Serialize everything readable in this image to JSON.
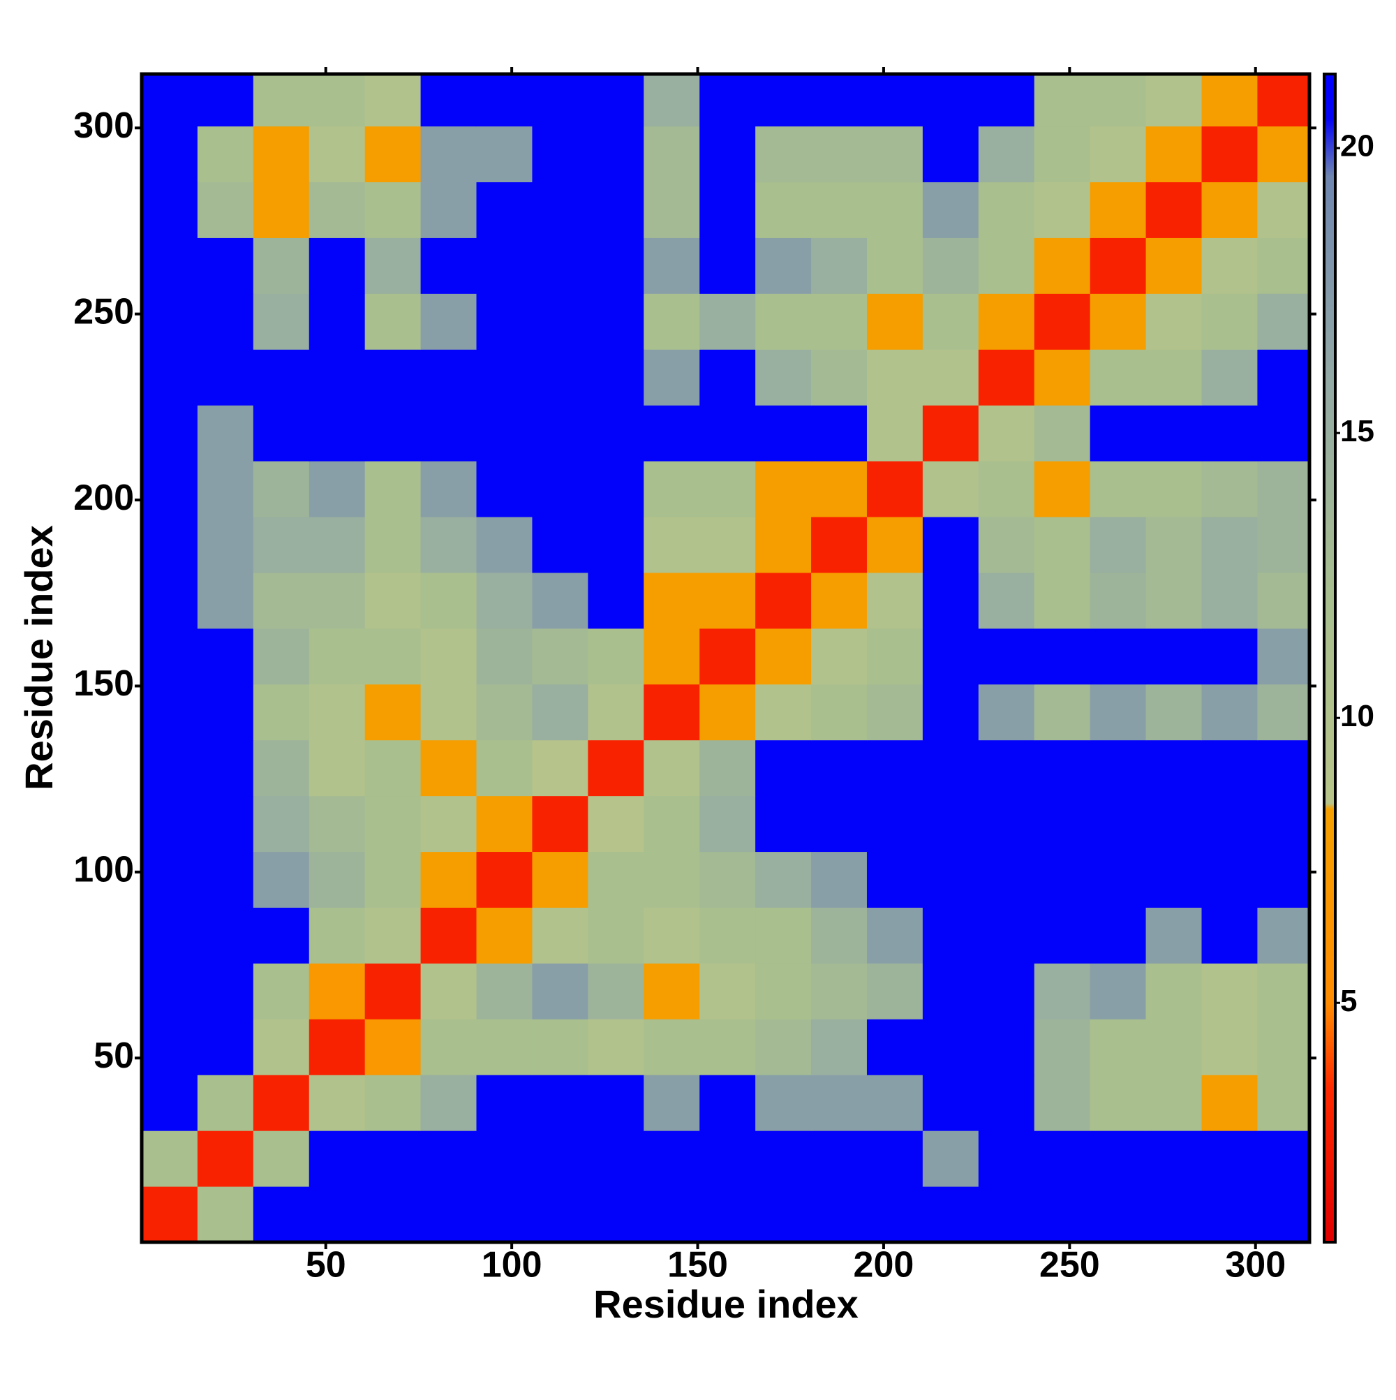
{
  "chart_data": {
    "type": "heatmap",
    "xlabel": "Residue index",
    "ylabel": "Residue index",
    "xlim": [
      0.5,
      314.5
    ],
    "ylim": [
      0.5,
      314.5
    ],
    "xticks": [
      50,
      100,
      150,
      200,
      250,
      300
    ],
    "yticks": [
      50,
      100,
      150,
      200,
      250,
      300
    ],
    "xbins": [
      0.5,
      15.5,
      30.5,
      45.5,
      60.5,
      75.5,
      90.5,
      105.5,
      120.5,
      135.5,
      150.5,
      165.5,
      180.5,
      195.5,
      210.5,
      225.5,
      240.5,
      255.5,
      270.5,
      285.5,
      300.5,
      315.5
    ],
    "ybins": [
      0.5,
      15.5,
      30.5,
      45.5,
      60.5,
      75.5,
      90.5,
      105.5,
      120.5,
      135.5,
      150.5,
      165.5,
      180.5,
      195.5,
      210.5,
      225.5,
      240.5,
      255.5,
      270.5,
      285.5,
      300.5,
      315.5
    ],
    "z": [
      [
        3,
        12,
        21,
        21,
        21,
        21,
        21,
        21,
        21,
        21,
        21,
        21,
        21,
        21,
        21,
        21,
        21,
        21,
        21,
        21,
        21
      ],
      [
        12,
        3,
        12,
        21,
        21,
        21,
        21,
        21,
        21,
        21,
        21,
        21,
        21,
        21,
        17,
        21,
        21,
        21,
        21,
        21,
        21
      ],
      [
        21,
        12,
        3,
        10,
        12,
        15,
        21,
        21,
        21,
        17,
        21,
        17,
        17,
        17,
        21,
        21,
        14,
        12,
        12,
        8,
        12
      ],
      [
        21,
        21,
        10,
        3,
        7,
        12,
        12,
        12,
        10,
        12,
        12,
        13,
        15,
        21,
        21,
        21,
        14,
        12,
        12,
        10,
        12
      ],
      [
        21,
        21,
        12,
        7,
        3,
        10,
        14,
        17,
        14,
        8,
        10,
        12,
        13,
        14,
        21,
        21,
        15,
        17,
        12,
        10,
        12
      ],
      [
        21,
        21,
        21,
        12,
        10,
        3,
        8,
        10,
        12,
        10,
        12,
        12,
        14,
        17,
        21,
        21,
        21,
        21,
        17,
        21,
        17
      ],
      [
        21,
        21,
        17,
        14,
        12,
        8,
        3,
        8,
        12,
        12,
        13,
        15,
        17,
        21,
        21,
        21,
        21,
        21,
        21,
        21,
        21
      ],
      [
        21,
        21,
        15,
        13,
        12,
        10,
        8,
        3,
        9,
        12,
        15,
        21,
        21,
        21,
        21,
        21,
        21,
        21,
        21,
        21,
        21
      ],
      [
        21,
        21,
        14,
        10,
        12,
        8,
        12,
        9,
        3,
        10,
        14,
        21,
        21,
        21,
        21,
        21,
        21,
        21,
        21,
        21,
        21
      ],
      [
        21,
        21,
        12,
        10,
        8,
        10,
        13,
        15,
        10,
        3,
        8,
        10,
        12,
        13,
        21,
        17,
        13,
        17,
        14,
        17,
        14
      ],
      [
        21,
        21,
        14,
        12,
        12,
        10,
        14,
        13,
        12,
        8,
        3,
        8,
        10,
        12,
        21,
        21,
        21,
        21,
        21,
        21,
        17
      ],
      [
        21,
        17,
        13,
        13,
        10,
        12,
        15,
        17,
        21,
        8,
        8,
        3,
        8,
        10,
        21,
        15,
        12,
        14,
        13,
        15,
        13
      ],
      [
        21,
        17,
        15,
        15,
        12,
        15,
        17,
        21,
        21,
        10,
        10,
        8,
        3,
        8,
        21,
        13,
        12,
        15,
        13,
        15,
        14
      ],
      [
        21,
        17,
        14,
        17,
        12,
        17,
        21,
        21,
        21,
        12,
        12,
        8,
        8,
        3,
        10,
        12,
        8,
        12,
        12,
        13,
        14
      ],
      [
        21,
        17,
        21,
        21,
        21,
        21,
        21,
        21,
        21,
        21,
        21,
        21,
        21,
        10,
        3,
        10,
        13,
        21,
        21,
        21,
        21
      ],
      [
        21,
        21,
        21,
        21,
        21,
        21,
        21,
        21,
        21,
        17,
        21,
        15,
        13,
        10,
        10,
        3,
        8,
        12,
        12,
        15,
        21
      ],
      [
        21,
        21,
        15,
        21,
        12,
        17,
        21,
        21,
        21,
        12,
        15,
        12,
        12,
        8,
        12,
        8,
        3,
        8,
        10,
        12,
        15
      ],
      [
        21,
        21,
        14,
        21,
        15,
        21,
        21,
        21,
        21,
        17,
        21,
        17,
        15,
        12,
        14,
        12,
        8,
        3,
        8,
        10,
        12
      ],
      [
        21,
        13,
        8,
        13,
        12,
        17,
        21,
        21,
        21,
        13,
        21,
        12,
        12,
        12,
        17,
        12,
        10,
        8,
        3,
        8,
        10
      ],
      [
        21,
        12,
        8,
        10,
        8,
        17,
        17,
        21,
        21,
        13,
        21,
        13,
        13,
        13,
        21,
        15,
        12,
        10,
        8,
        3,
        8
      ],
      [
        21,
        21,
        12,
        12,
        10,
        21,
        21,
        21,
        21,
        15,
        21,
        21,
        21,
        21,
        21,
        21,
        12,
        12,
        10,
        8,
        3
      ]
    ],
    "clim": [
      0.8,
      21.3
    ],
    "cticks": [
      5,
      10,
      15,
      20
    ],
    "colorscale": [
      [
        0.8,
        "#e00000"
      ],
      [
        3.5,
        "#ff2a00"
      ],
      [
        5,
        "#ff8c00"
      ],
      [
        8.4,
        "#f5a000"
      ],
      [
        8.5,
        "#b8c48a"
      ],
      [
        12,
        "#a9bf8e"
      ],
      [
        16,
        "#93a9a5"
      ],
      [
        19.5,
        "#6f86b0"
      ],
      [
        20.5,
        "#0505f5"
      ],
      [
        21.3,
        "#0000ff"
      ]
    ]
  }
}
